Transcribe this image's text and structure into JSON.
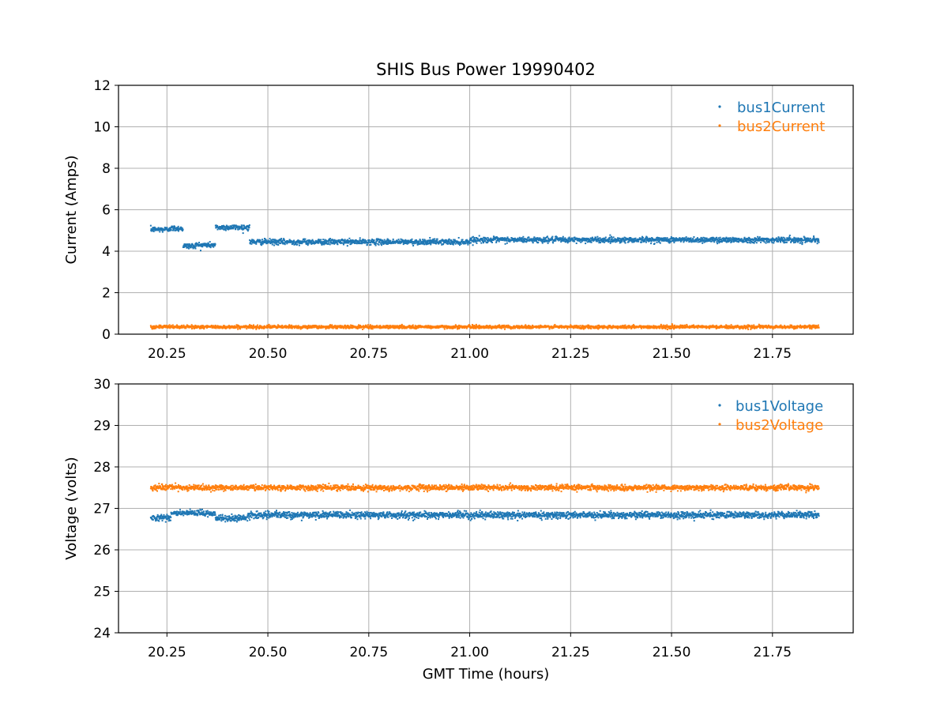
{
  "chart_data": [
    {
      "type": "scatter",
      "title": "SHIS Bus Power 19990402",
      "xlabel": "",
      "ylabel": "Current (Amps)",
      "xlim": [
        20.13,
        21.95
      ],
      "ylim": [
        0,
        12
      ],
      "xticks": [
        20.25,
        20.5,
        20.75,
        21.0,
        21.25,
        21.5,
        21.75
      ],
      "xtick_labels": [
        "20.25",
        "20.50",
        "20.75",
        "21.00",
        "21.25",
        "21.50",
        "21.75"
      ],
      "show_xtick_labels": true,
      "yticks": [
        0,
        2,
        4,
        6,
        8,
        10,
        12
      ],
      "ytick_labels": [
        "0",
        "2",
        "4",
        "6",
        "8",
        "10",
        "12"
      ],
      "grid": true,
      "legend_position": "top-right",
      "x_range": [
        20.21,
        21.865
      ],
      "series": [
        {
          "name": "bus1Current",
          "color": "#1f77b4",
          "noise": 0.12,
          "segments": [
            {
              "x0": 20.21,
              "x1": 20.255,
              "y": 5.05
            },
            {
              "x0": 20.255,
              "x1": 20.29,
              "y": 5.1
            },
            {
              "x0": 20.29,
              "x1": 20.32,
              "y": 4.25
            },
            {
              "x0": 20.32,
              "x1": 20.37,
              "y": 4.3
            },
            {
              "x0": 20.37,
              "x1": 20.455,
              "y": 5.15
            },
            {
              "x0": 20.455,
              "x1": 20.62,
              "y": 4.45
            },
            {
              "x0": 20.62,
              "x1": 21.0,
              "y": 4.45
            },
            {
              "x0": 21.0,
              "x1": 21.865,
              "y": 4.55
            }
          ]
        },
        {
          "name": "bus2Current",
          "color": "#ff7f0e",
          "noise": 0.07,
          "segments": [
            {
              "x0": 20.21,
              "x1": 21.865,
              "y": 0.35
            }
          ]
        }
      ]
    },
    {
      "type": "scatter",
      "title": "",
      "xlabel": "GMT Time (hours)",
      "ylabel": "Voltage (volts)",
      "xlim": [
        20.13,
        21.95
      ],
      "ylim": [
        24,
        30
      ],
      "xticks": [
        20.25,
        20.5,
        20.75,
        21.0,
        21.25,
        21.5,
        21.75
      ],
      "xtick_labels": [
        "20.25",
        "20.50",
        "20.75",
        "21.00",
        "21.25",
        "21.50",
        "21.75"
      ],
      "show_xtick_labels": true,
      "yticks": [
        24,
        25,
        26,
        27,
        28,
        29,
        30
      ],
      "ytick_labels": [
        "24",
        "25",
        "26",
        "27",
        "28",
        "29",
        "30"
      ],
      "grid": true,
      "legend_position": "top-right",
      "x_range": [
        20.21,
        21.865
      ],
      "series": [
        {
          "name": "bus1Voltage",
          "color": "#1f77b4",
          "noise": 0.07,
          "segments": [
            {
              "x0": 20.21,
              "x1": 20.26,
              "y": 26.78
            },
            {
              "x0": 20.26,
              "x1": 20.37,
              "y": 26.88
            },
            {
              "x0": 20.37,
              "x1": 20.45,
              "y": 26.76
            },
            {
              "x0": 20.45,
              "x1": 21.865,
              "y": 26.84
            }
          ]
        },
        {
          "name": "bus2Voltage",
          "color": "#ff7f0e",
          "noise": 0.06,
          "segments": [
            {
              "x0": 20.21,
              "x1": 21.865,
              "y": 27.5
            }
          ]
        }
      ]
    }
  ]
}
